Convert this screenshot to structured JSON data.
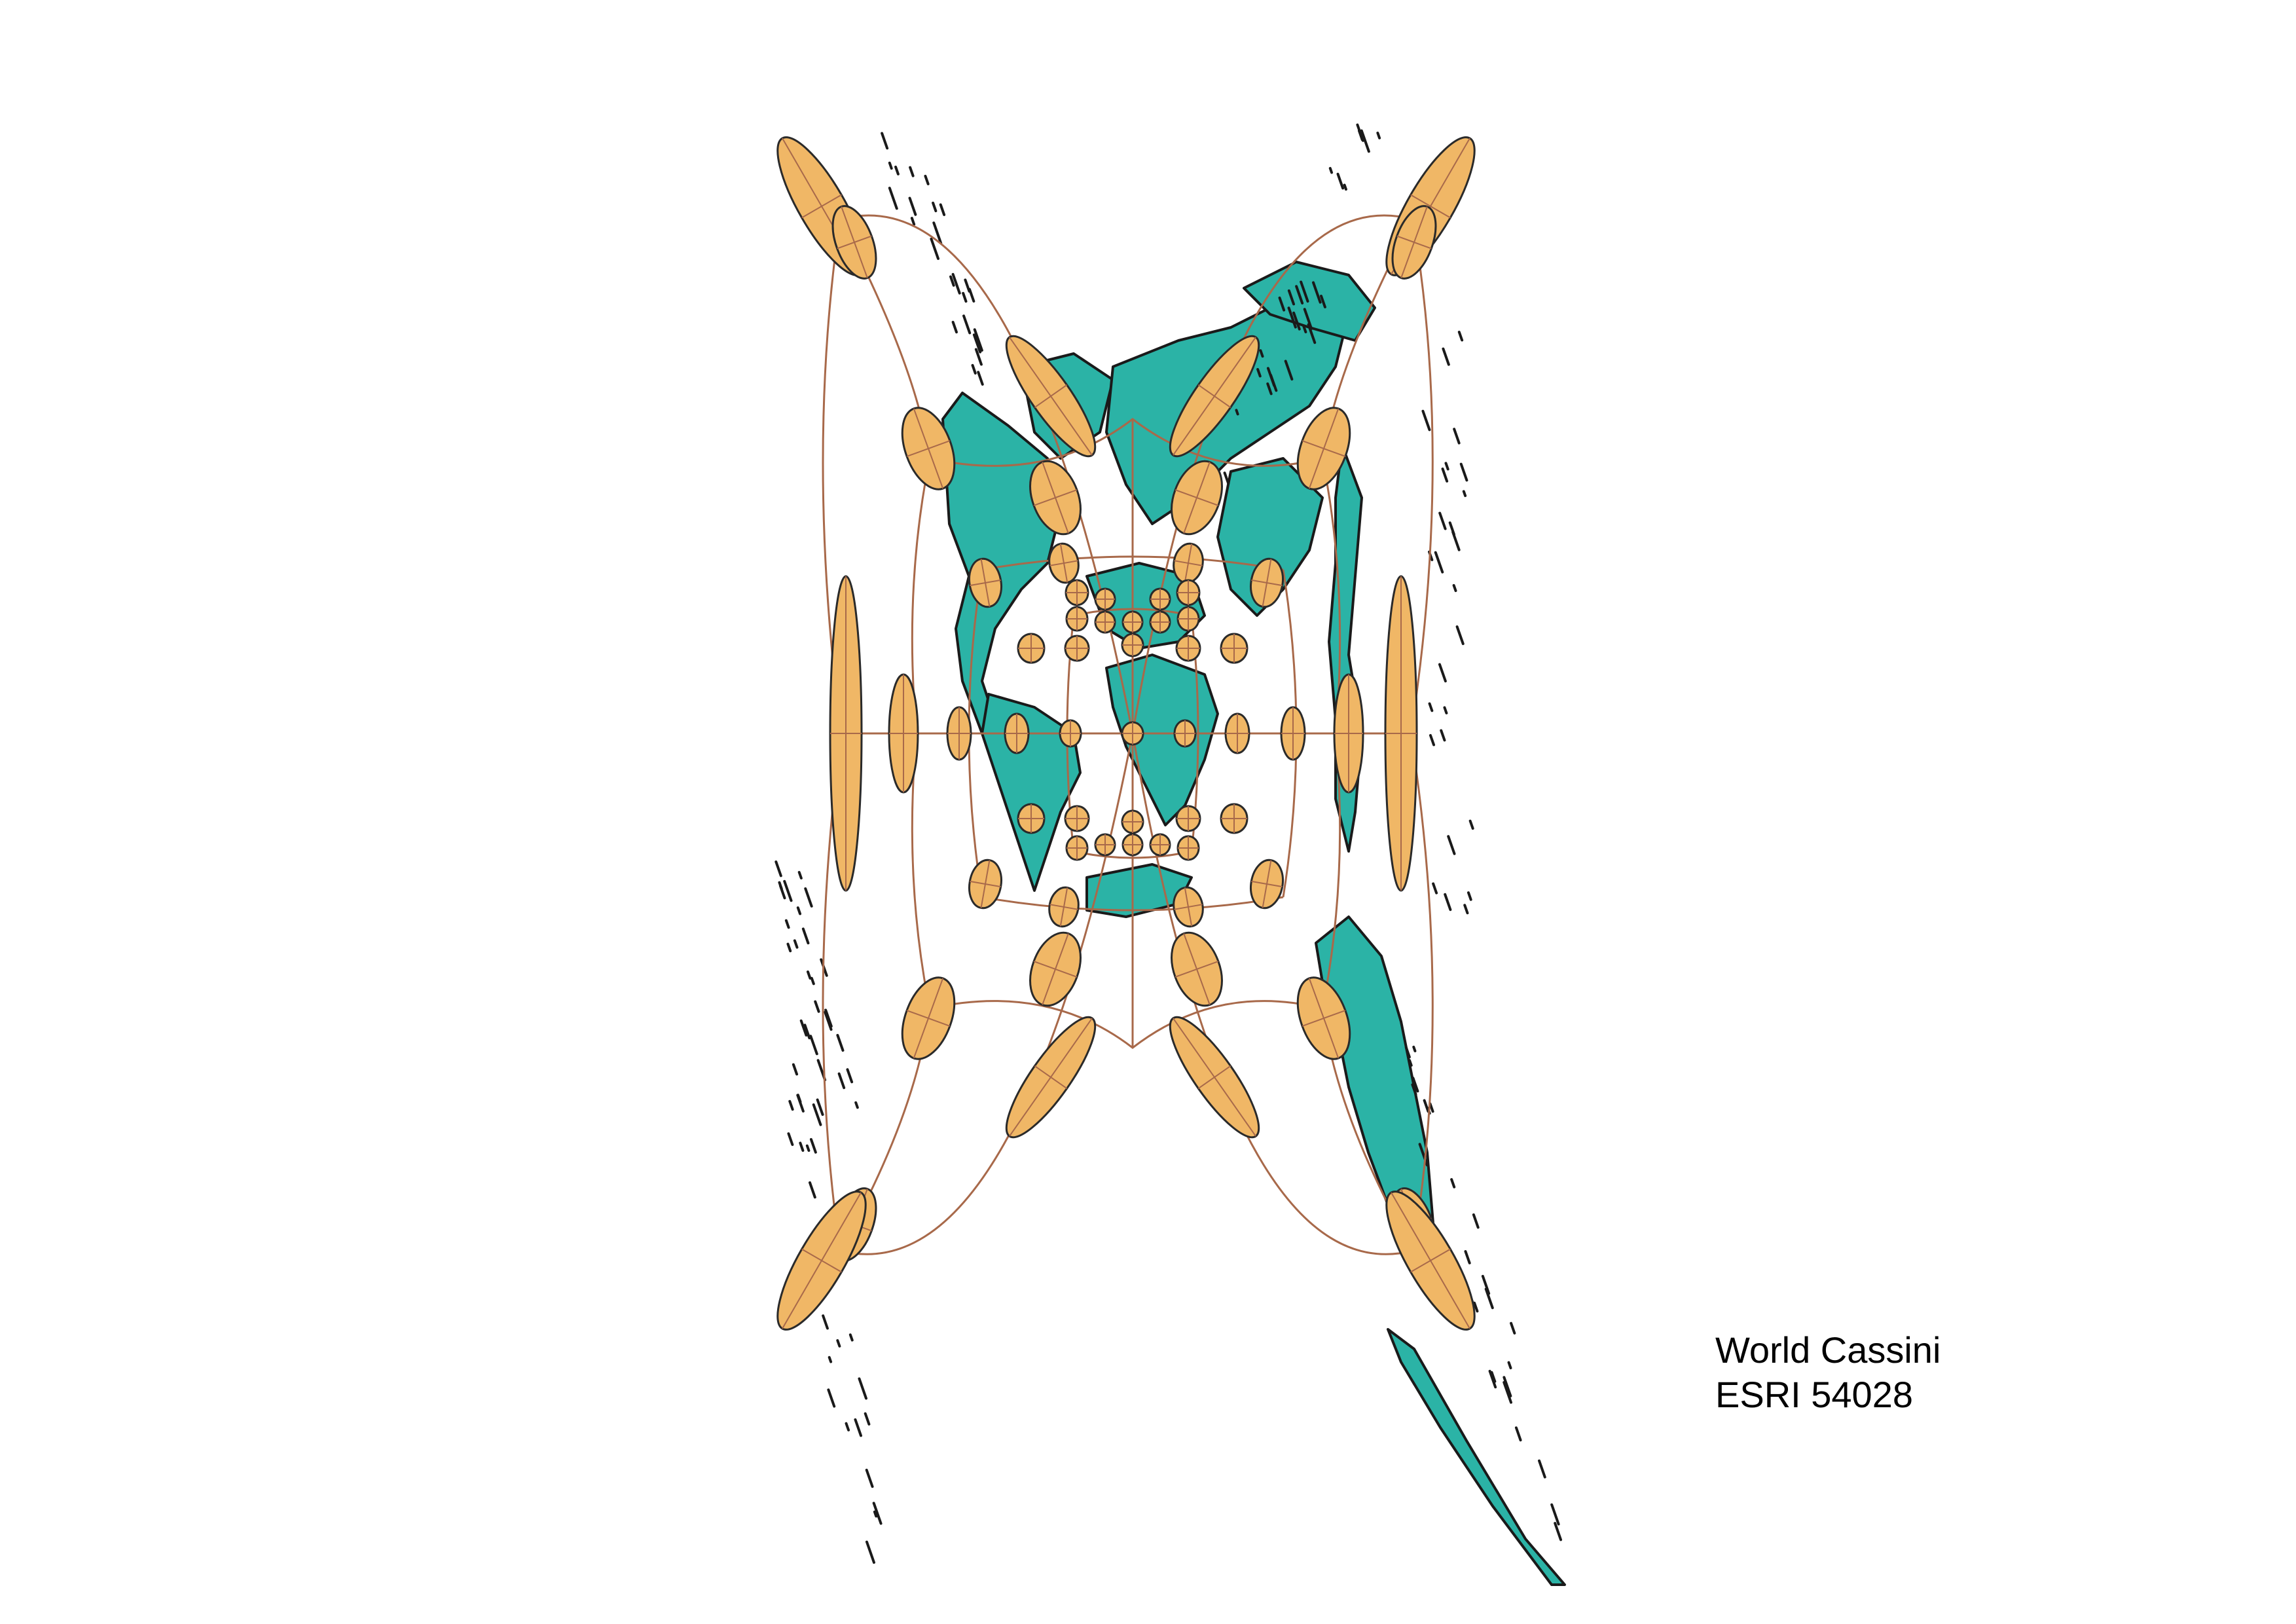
{
  "projection": {
    "name": "World Cassini",
    "code": "ESRI 54028"
  },
  "colors": {
    "land": "#2bb3a6",
    "land_outline": "#1a1a1a",
    "ellipse_fill": "#f0b766",
    "ellipse_outline": "#2a2a2a",
    "graticule": "#a8694a",
    "background": "#ffffff"
  },
  "legend": {
    "type": "Tissot indicatrix",
    "graticule_spacing_deg": 30
  }
}
